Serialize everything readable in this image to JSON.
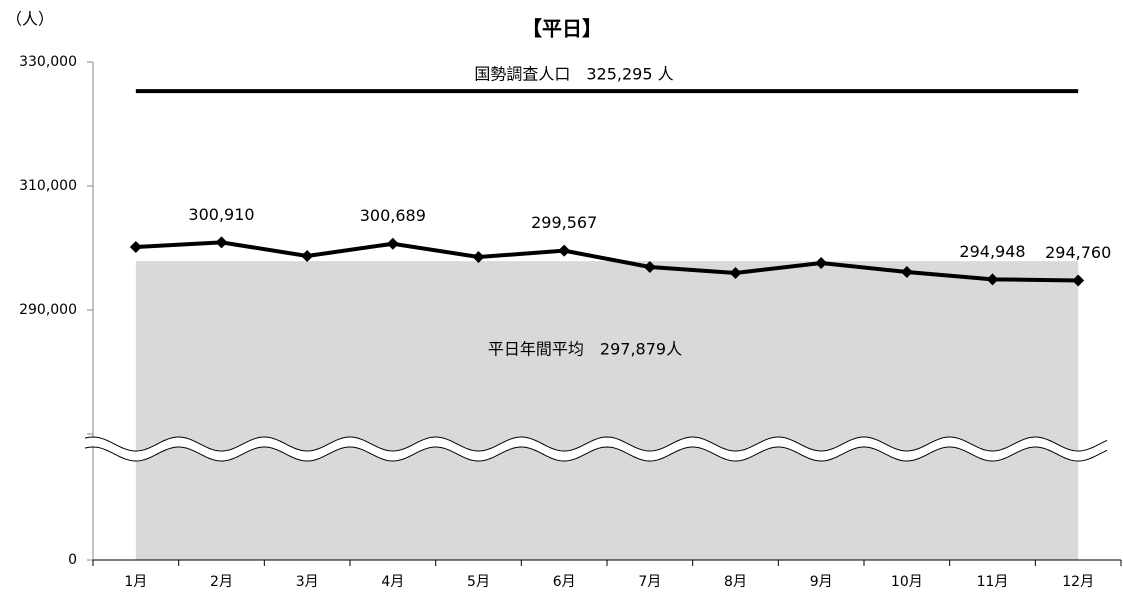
{
  "chart_data": {
    "type": "line",
    "title": "【平日】",
    "y_unit_label": "（人）",
    "categories": [
      "1月",
      "2月",
      "3月",
      "4月",
      "5月",
      "6月",
      "7月",
      "8月",
      "9月",
      "10月",
      "11月",
      "12月"
    ],
    "series": [
      {
        "name": "平日",
        "color": "#000000",
        "values": [
          300160,
          300910,
          298710,
          300689,
          298550,
          299567,
          296940,
          295970,
          297580,
          296130,
          294948,
          294760
        ],
        "value_labels": [
          null,
          "300,910",
          null,
          "300,689",
          null,
          "299,567",
          null,
          null,
          null,
          null,
          "294,948",
          "294,760"
        ]
      }
    ],
    "ylim": [
      0,
      330000
    ],
    "y_break": [
      0,
      270000
    ],
    "yticks": [
      {
        "value": 0,
        "label": "0"
      },
      {
        "value": 290000,
        "label": "290,000"
      },
      {
        "value": 310000,
        "label": "310,000"
      },
      {
        "value": 330000,
        "label": "330,000"
      }
    ],
    "reference_line": {
      "value": 325295,
      "label": "国勢調査人口　325,295 人",
      "color": "#000000"
    },
    "average_area": {
      "value": 297879,
      "label": "平日年間平均　297,879人",
      "color": "#d9d9d9"
    }
  }
}
